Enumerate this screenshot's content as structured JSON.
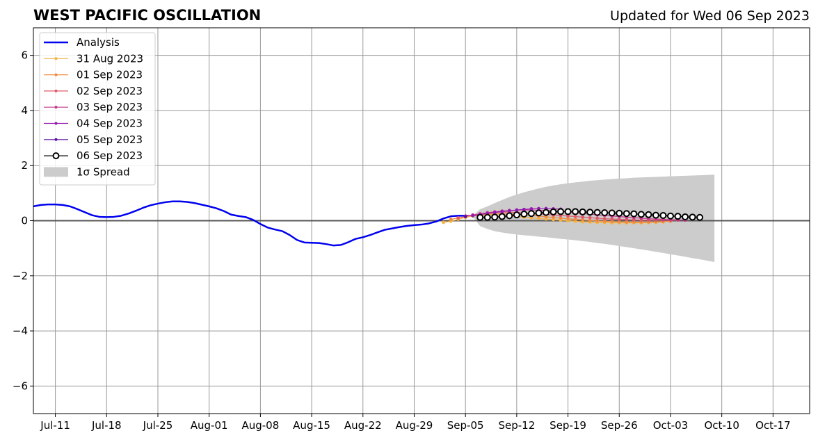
{
  "chart_data": {
    "type": "line",
    "title": "WEST PACIFIC OSCILLATION",
    "subtitle": "Updated for Wed 06 Sep 2023",
    "xlabel": "",
    "ylabel": "",
    "x_start": "2023-07-08",
    "x_end": "2023-10-22",
    "ylim": [
      -7,
      7
    ],
    "yticks": [
      -6,
      -4,
      -2,
      0,
      2,
      4,
      6
    ],
    "ytick_labels": [
      "−6",
      "−4",
      "−2",
      "0",
      "2",
      "4",
      "6"
    ],
    "xticks": [
      "2023-07-11",
      "2023-07-18",
      "2023-07-25",
      "2023-08-01",
      "2023-08-08",
      "2023-08-15",
      "2023-08-22",
      "2023-08-29",
      "2023-09-05",
      "2023-09-12",
      "2023-09-19",
      "2023-09-26",
      "2023-10-03",
      "2023-10-10",
      "2023-10-17"
    ],
    "xtick_labels": [
      "Jul-11",
      "Jul-18",
      "Jul-25",
      "Aug-01",
      "Aug-08",
      "Aug-15",
      "Aug-22",
      "Aug-29",
      "Sep-05",
      "Sep-12",
      "Sep-19",
      "Sep-26",
      "Oct-03",
      "Oct-10",
      "Oct-17"
    ],
    "grid": true,
    "legend_position": "top-left",
    "colors": {
      "analysis": "#0000ee",
      "spread": "#cccccc",
      "grid": "#999999",
      "zero_line": "#555555"
    },
    "analysis": {
      "name": "Analysis",
      "dates": [
        "2023-07-08",
        "2023-07-09",
        "2023-07-10",
        "2023-07-11",
        "2023-07-12",
        "2023-07-13",
        "2023-07-14",
        "2023-07-15",
        "2023-07-16",
        "2023-07-17",
        "2023-07-18",
        "2023-07-19",
        "2023-07-20",
        "2023-07-21",
        "2023-07-22",
        "2023-07-23",
        "2023-07-24",
        "2023-07-25",
        "2023-07-26",
        "2023-07-27",
        "2023-07-28",
        "2023-07-29",
        "2023-07-30",
        "2023-07-31",
        "2023-08-01",
        "2023-08-02",
        "2023-08-03",
        "2023-08-04",
        "2023-08-05",
        "2023-08-06",
        "2023-08-07",
        "2023-08-08",
        "2023-08-09",
        "2023-08-10",
        "2023-08-11",
        "2023-08-12",
        "2023-08-13",
        "2023-08-14",
        "2023-08-15",
        "2023-08-16",
        "2023-08-17",
        "2023-08-18",
        "2023-08-19",
        "2023-08-20",
        "2023-08-21",
        "2023-08-22",
        "2023-08-23",
        "2023-08-24",
        "2023-08-25",
        "2023-08-26",
        "2023-08-27",
        "2023-08-28",
        "2023-08-29",
        "2023-08-30",
        "2023-08-31",
        "2023-09-01",
        "2023-09-02",
        "2023-09-03",
        "2023-09-04",
        "2023-09-05",
        "2023-09-06"
      ],
      "values": [
        0.52,
        0.57,
        0.59,
        0.59,
        0.57,
        0.52,
        0.42,
        0.31,
        0.2,
        0.14,
        0.13,
        0.14,
        0.18,
        0.26,
        0.36,
        0.47,
        0.56,
        0.62,
        0.67,
        0.7,
        0.7,
        0.68,
        0.64,
        0.58,
        0.52,
        0.45,
        0.35,
        0.22,
        0.17,
        0.13,
        0.03,
        -0.12,
        -0.25,
        -0.32,
        -0.38,
        -0.52,
        -0.7,
        -0.79,
        -0.8,
        -0.81,
        -0.85,
        -0.9,
        -0.88,
        -0.78,
        -0.66,
        -0.6,
        -0.52,
        -0.42,
        -0.33,
        -0.28,
        -0.23,
        -0.19,
        -0.16,
        -0.14,
        -0.1,
        -0.03,
        0.08,
        0.16,
        0.18,
        0.18,
        0.17
      ],
      "width": 2.5
    },
    "forecasts": [
      {
        "name": "31 Aug 2023",
        "color": "#f5b342",
        "marker_size": 2,
        "start": "2023-09-02",
        "values": [
          -0.06,
          -0.02,
          0.05,
          0.12,
          0.17,
          0.2,
          0.21,
          0.21,
          0.2,
          0.18,
          0.16,
          0.13,
          0.1,
          0.08,
          0.06,
          0.04,
          0.02,
          0.0,
          -0.02,
          -0.04,
          -0.05,
          -0.06,
          -0.07,
          -0.08,
          -0.08,
          -0.08,
          -0.08,
          -0.08,
          -0.07,
          -0.06,
          -0.05
        ]
      },
      {
        "name": "01 Sep 2023",
        "color": "#f08a3e",
        "marker_size": 2,
        "start": "2023-09-03",
        "values": [
          0.05,
          0.1,
          0.15,
          0.2,
          0.22,
          0.24,
          0.25,
          0.25,
          0.24,
          0.23,
          0.21,
          0.19,
          0.17,
          0.14,
          0.12,
          0.09,
          0.07,
          0.05,
          0.03,
          0.01,
          -0.01,
          -0.02,
          -0.03,
          -0.04,
          -0.05,
          -0.05,
          -0.05,
          -0.05,
          -0.04,
          -0.03,
          -0.02
        ]
      },
      {
        "name": "02 Sep 2023",
        "color": "#e05a6a",
        "marker_size": 2,
        "start": "2023-09-04",
        "values": [
          0.1,
          0.15,
          0.2,
          0.25,
          0.28,
          0.3,
          0.31,
          0.31,
          0.3,
          0.28,
          0.27,
          0.25,
          0.23,
          0.21,
          0.19,
          0.17,
          0.15,
          0.13,
          0.11,
          0.09,
          0.07,
          0.06,
          0.05,
          0.04,
          0.03,
          0.02,
          0.02,
          0.02,
          0.02,
          0.02,
          0.02
        ]
      },
      {
        "name": "03 Sep 2023",
        "color": "#c4388a",
        "marker_size": 2,
        "start": "2023-09-05",
        "values": [
          0.17,
          0.21,
          0.25,
          0.29,
          0.32,
          0.35,
          0.37,
          0.38,
          0.39,
          0.39,
          0.38,
          0.37,
          0.35,
          0.33,
          0.31,
          0.29,
          0.26,
          0.24,
          0.21,
          0.19,
          0.17,
          0.15,
          0.13,
          0.11,
          0.09,
          0.07,
          0.06,
          0.05,
          0.04,
          0.03,
          0.02
        ]
      },
      {
        "name": "04 Sep 2023",
        "color": "#951ab0",
        "marker_size": 2,
        "start": "2023-09-06",
        "values": [
          0.18,
          0.22,
          0.26,
          0.3,
          0.33,
          0.36,
          0.39,
          0.41,
          0.43,
          0.44,
          0.44,
          0.43,
          0.42
        ]
      },
      {
        "name": "05 Sep 2023",
        "color": "#5a0ea3",
        "marker_size": 2,
        "start": "2023-09-05",
        "values": [
          0.15
        ]
      },
      {
        "name": "06 Sep 2023",
        "color": "#000000",
        "marker_size": 4,
        "marker_face": "#ffffff",
        "start": "2023-09-07",
        "values": [
          0.12,
          0.12,
          0.13,
          0.15,
          0.18,
          0.21,
          0.24,
          0.26,
          0.28,
          0.3,
          0.32,
          0.33,
          0.33,
          0.33,
          0.32,
          0.31,
          0.3,
          0.29,
          0.28,
          0.27,
          0.26,
          0.25,
          0.23,
          0.22,
          0.2,
          0.19,
          0.17,
          0.16,
          0.14,
          0.13,
          0.12
        ]
      }
    ],
    "spread": {
      "name": "1σ Spread",
      "start": "2023-09-06",
      "lower": [
        0.15,
        -0.2,
        -0.3,
        -0.38,
        -0.43,
        -0.47,
        -0.5,
        -0.53,
        -0.55,
        -0.58,
        -0.6,
        -0.63,
        -0.66,
        -0.68,
        -0.71,
        -0.74,
        -0.77,
        -0.81,
        -0.84,
        -0.88,
        -0.92,
        -0.96,
        -1.0,
        -1.04,
        -1.08,
        -1.13,
        -1.17,
        -1.22,
        -1.26,
        -1.31,
        -1.36,
        -1.4,
        -1.45,
        -1.5
      ],
      "upper": [
        0.18,
        0.42,
        0.52,
        0.64,
        0.75,
        0.86,
        0.95,
        1.03,
        1.1,
        1.17,
        1.23,
        1.28,
        1.32,
        1.36,
        1.39,
        1.42,
        1.45,
        1.47,
        1.49,
        1.51,
        1.53,
        1.54,
        1.56,
        1.57,
        1.58,
        1.59,
        1.6,
        1.61,
        1.62,
        1.63,
        1.64,
        1.65,
        1.66,
        1.67
      ]
    }
  }
}
